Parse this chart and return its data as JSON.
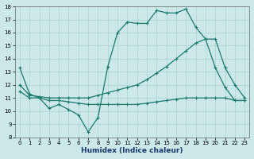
{
  "xlabel": "Humidex (Indice chaleur)",
  "background_color": "#cce8e8",
  "grid_color": "#b0d4d4",
  "line_color": "#1a7a6e",
  "xlim": [
    -0.5,
    23.5
  ],
  "ylim": [
    8,
    18
  ],
  "xticks": [
    0,
    1,
    2,
    3,
    4,
    5,
    6,
    7,
    8,
    9,
    10,
    11,
    12,
    13,
    14,
    15,
    16,
    17,
    18,
    19,
    20,
    21,
    22,
    23
  ],
  "yticks": [
    8,
    9,
    10,
    11,
    12,
    13,
    14,
    15,
    16,
    17,
    18
  ],
  "line1_x": [
    0,
    1,
    2,
    3,
    4,
    5,
    6,
    7,
    8,
    9,
    10,
    11,
    12,
    13,
    14,
    15,
    16,
    17,
    18,
    19,
    20,
    21,
    22,
    23
  ],
  "line1_y": [
    13.3,
    11.3,
    11.0,
    10.2,
    10.5,
    10.1,
    9.7,
    8.4,
    9.5,
    13.4,
    16.0,
    16.8,
    16.7,
    16.7,
    17.7,
    17.5,
    17.5,
    17.8,
    16.4,
    15.5,
    13.3,
    11.8,
    10.8,
    10.8
  ],
  "line2_x": [
    0,
    1,
    2,
    3,
    4,
    5,
    6,
    7,
    8,
    9,
    10,
    11,
    12,
    13,
    14,
    15,
    16,
    17,
    18,
    19,
    20,
    21,
    22,
    23
  ],
  "line2_y": [
    12.0,
    11.2,
    11.1,
    11.0,
    11.0,
    11.0,
    11.0,
    11.0,
    11.2,
    11.4,
    11.6,
    11.8,
    12.0,
    12.4,
    12.9,
    13.4,
    14.0,
    14.6,
    15.2,
    15.5,
    15.5,
    13.3,
    12.0,
    11.0
  ],
  "line3_x": [
    0,
    1,
    2,
    3,
    4,
    5,
    6,
    7,
    8,
    9,
    10,
    11,
    12,
    13,
    14,
    15,
    16,
    17,
    18,
    19,
    20,
    21,
    22,
    23
  ],
  "line3_y": [
    11.5,
    11.0,
    11.0,
    10.8,
    10.8,
    10.7,
    10.6,
    10.5,
    10.5,
    10.5,
    10.5,
    10.5,
    10.5,
    10.6,
    10.7,
    10.8,
    10.9,
    11.0,
    11.0,
    11.0,
    11.0,
    11.0,
    10.8,
    10.8
  ]
}
